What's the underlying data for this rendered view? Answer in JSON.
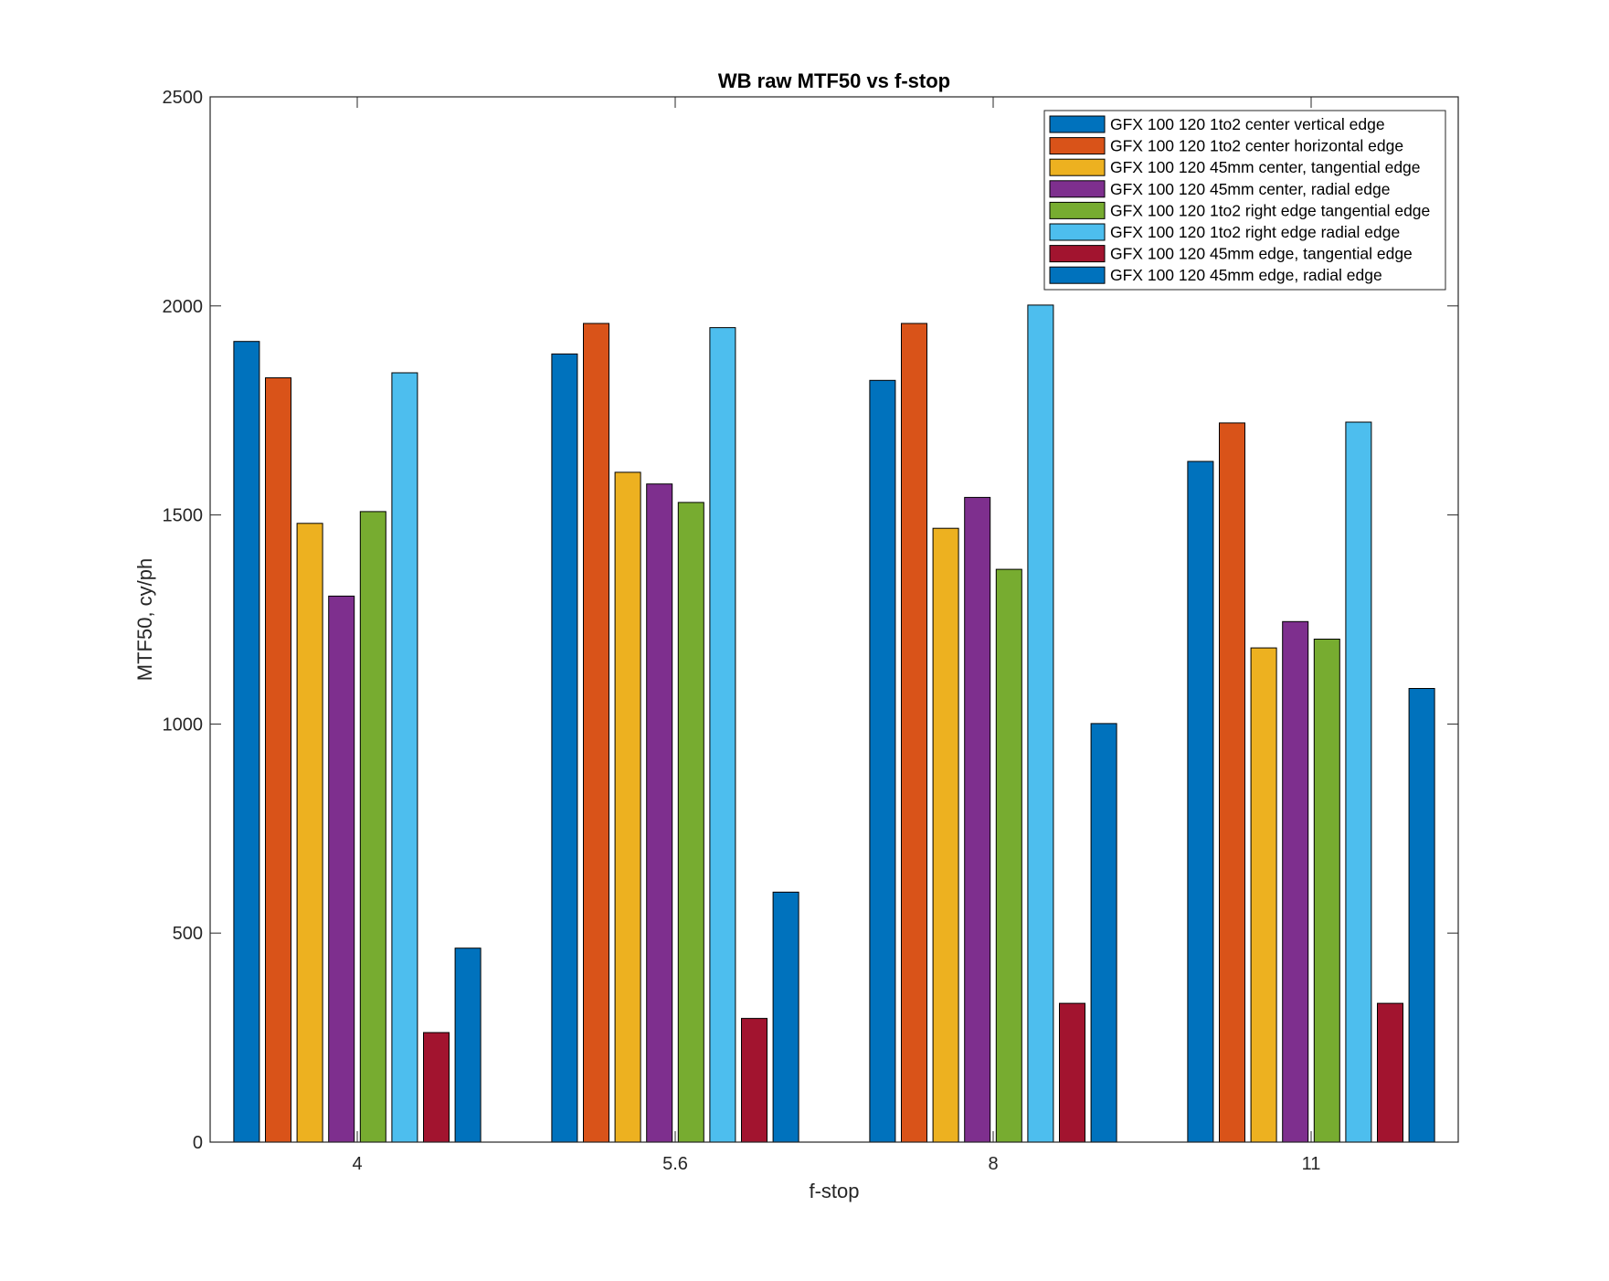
{
  "chart_data": {
    "type": "bar",
    "title": "WB raw MTF50 vs f-stop",
    "xlabel": "f-stop",
    "ylabel": "MTF50, cy/ph",
    "categories": [
      "4",
      "5.6",
      "8",
      "11"
    ],
    "ylim": [
      0,
      2500
    ],
    "yticks": [
      "0",
      "500",
      "1000",
      "1500",
      "2000",
      "2500"
    ],
    "grid": false,
    "legend_position": "top-right",
    "series": [
      {
        "name": "GFX 100 120 1to2 center vertical edge",
        "color": "#0072BD",
        "values": [
          1915,
          1885,
          1822,
          1628
        ]
      },
      {
        "name": "GFX 100 120 1to2 center horizontal edge",
        "color": "#D95319",
        "values": [
          1828,
          1958,
          1958,
          1720
        ]
      },
      {
        "name": "GFX 100 120 45mm center, tangential edge",
        "color": "#EDB120",
        "values": [
          1480,
          1602,
          1468,
          1182
        ]
      },
      {
        "name": "GFX 100 120 45mm center, radial edge",
        "color": "#7E2F8E",
        "values": [
          1306,
          1574,
          1542,
          1245
        ]
      },
      {
        "name": "GFX 100 120 1to2 right edge tangential edge",
        "color": "#77AC30",
        "values": [
          1508,
          1530,
          1370,
          1203
        ]
      },
      {
        "name": "GFX 100 120 1to2 right edge radial edge",
        "color": "#4DBEEE",
        "values": [
          1840,
          1948,
          2002,
          1722
        ]
      },
      {
        "name": "GFX 100 120 45mm edge, tangential edge",
        "color": "#A2142F",
        "values": [
          262,
          296,
          332,
          332
        ]
      },
      {
        "name": "GFX 100 120 45mm edge, radial edge",
        "color": "#0072BD",
        "values": [
          464,
          598,
          1001,
          1085
        ]
      }
    ]
  }
}
